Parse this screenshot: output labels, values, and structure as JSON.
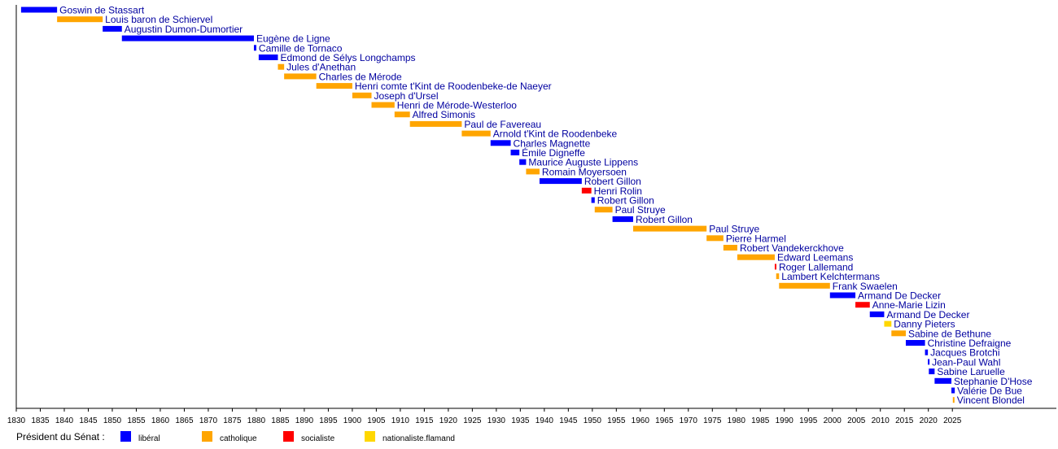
{
  "chart_data": {
    "type": "timeline",
    "xlim": [
      1830,
      2027
    ],
    "x_ticks": [
      1830,
      1835,
      1840,
      1845,
      1850,
      1855,
      1860,
      1865,
      1870,
      1875,
      1880,
      1885,
      1890,
      1895,
      1900,
      1905,
      1910,
      1915,
      1920,
      1925,
      1930,
      1935,
      1940,
      1945,
      1950,
      1955,
      1960,
      1965,
      1970,
      1975,
      1980,
      1985,
      1990,
      1995,
      2000,
      2005,
      2010,
      2015,
      2020,
      2025
    ],
    "colors": {
      "liberal": "#0000ff",
      "catholique": "#ffa500",
      "socialiste": "#ff0000",
      "nationaliste": "#ffd700"
    },
    "legend": {
      "title": "Président du Sénat :",
      "entries": [
        {
          "key": "liberal",
          "label": "libéral"
        },
        {
          "key": "catholique",
          "label": "catholique"
        },
        {
          "key": "socialiste",
          "label": "socialiste"
        },
        {
          "key": "nationaliste",
          "label": "nationaliste.flamand"
        }
      ]
    },
    "presidents": [
      {
        "name": "Goswin de Stassart",
        "start": 1831,
        "end": 1838.5,
        "party": "liberal"
      },
      {
        "name": "Louis baron de Schiervel",
        "start": 1838.5,
        "end": 1848,
        "party": "catholique"
      },
      {
        "name": "Augustin Dumon-Dumortier",
        "start": 1848,
        "end": 1852,
        "party": "liberal"
      },
      {
        "name": "Eugène de Ligne",
        "start": 1852,
        "end": 1879.5,
        "party": "liberal"
      },
      {
        "name": "Camille de Tornaco",
        "start": 1879.5,
        "end": 1880,
        "party": "liberal"
      },
      {
        "name": "Edmond de Sélys Longchamps",
        "start": 1880.5,
        "end": 1884.5,
        "party": "liberal"
      },
      {
        "name": "Jules d'Anethan",
        "start": 1884.5,
        "end": 1885.8,
        "party": "catholique"
      },
      {
        "name": "Charles de Mérode",
        "start": 1885.8,
        "end": 1892.5,
        "party": "catholique"
      },
      {
        "name": "Henri comte t'Kint de Roodenbeke-de Naeyer",
        "start": 1892.5,
        "end": 1900,
        "party": "catholique"
      },
      {
        "name": "Joseph d'Ursel",
        "start": 1900,
        "end": 1904,
        "party": "catholique"
      },
      {
        "name": "Henri de Mérode-Westerloo",
        "start": 1904,
        "end": 1908.8,
        "party": "catholique"
      },
      {
        "name": "Alfred Simonis",
        "start": 1908.8,
        "end": 1912,
        "party": "catholique"
      },
      {
        "name": "Paul de Favereau",
        "start": 1912,
        "end": 1922.8,
        "party": "catholique"
      },
      {
        "name": "Arnold t'Kint de Roodenbeke",
        "start": 1922.8,
        "end": 1928.8,
        "party": "catholique"
      },
      {
        "name": "Charles Magnette",
        "start": 1928.8,
        "end": 1933,
        "party": "liberal"
      },
      {
        "name": "Émile Digneffe",
        "start": 1933,
        "end": 1934.8,
        "party": "liberal"
      },
      {
        "name": "Maurice Auguste Lippens",
        "start": 1934.8,
        "end": 1936.2,
        "party": "liberal"
      },
      {
        "name": "Romain Moyersoen",
        "start": 1936.2,
        "end": 1939,
        "party": "catholique"
      },
      {
        "name": "Robert Gillon",
        "start": 1939,
        "end": 1947.8,
        "party": "liberal"
      },
      {
        "name": "Henri Rolin",
        "start": 1947.8,
        "end": 1949.8,
        "party": "socialiste"
      },
      {
        "name": "Robert Gillon",
        "start": 1949.8,
        "end": 1950.5,
        "party": "liberal"
      },
      {
        "name": "Paul Struye",
        "start": 1950.5,
        "end": 1954.2,
        "party": "catholique"
      },
      {
        "name": "Robert Gillon",
        "start": 1954.2,
        "end": 1958.5,
        "party": "liberal"
      },
      {
        "name": "Paul Struye",
        "start": 1958.5,
        "end": 1973.8,
        "party": "catholique"
      },
      {
        "name": "Pierre Harmel",
        "start": 1973.8,
        "end": 1977.3,
        "party": "catholique"
      },
      {
        "name": "Robert Vandekerckhove",
        "start": 1977.3,
        "end": 1980.2,
        "party": "catholique"
      },
      {
        "name": "Edward Leemans",
        "start": 1980.2,
        "end": 1988,
        "party": "catholique"
      },
      {
        "name": "Roger Lallemand",
        "start": 1988,
        "end": 1988.3,
        "party": "socialiste"
      },
      {
        "name": "Lambert Kelchtermans",
        "start": 1988.3,
        "end": 1988.9,
        "party": "catholique"
      },
      {
        "name": "Frank Swaelen",
        "start": 1988.9,
        "end": 1999.5,
        "party": "catholique"
      },
      {
        "name": "Armand De Decker",
        "start": 1999.5,
        "end": 2004.8,
        "party": "liberal"
      },
      {
        "name": "Anne-Marie Lizin",
        "start": 2004.8,
        "end": 2007.8,
        "party": "socialiste"
      },
      {
        "name": "Armand De Decker",
        "start": 2007.8,
        "end": 2010.8,
        "party": "liberal"
      },
      {
        "name": "Danny Pieters",
        "start": 2010.8,
        "end": 2012.3,
        "party": "nationaliste"
      },
      {
        "name": "Sabine de Bethune",
        "start": 2012.3,
        "end": 2015.3,
        "party": "catholique"
      },
      {
        "name": "Christine Defraigne",
        "start": 2015.3,
        "end": 2019.3,
        "party": "liberal"
      },
      {
        "name": "Jacques Brotchi",
        "start": 2019.3,
        "end": 2019.9,
        "party": "liberal"
      },
      {
        "name": "Jean-Paul Wahl",
        "start": 2019.9,
        "end": 2020.1,
        "party": "liberal"
      },
      {
        "name": "Sabine Laruelle",
        "start": 2020.1,
        "end": 2021.3,
        "party": "liberal"
      },
      {
        "name": "Stephanie D'Hose",
        "start": 2021.3,
        "end": 2024.8,
        "party": "liberal"
      },
      {
        "name": "Valérie De Bue",
        "start": 2024.8,
        "end": 2025.5,
        "party": "liberal"
      },
      {
        "name": "Vincent Blondel",
        "start": 2025.1,
        "end": 2025.4,
        "party": "catholique"
      }
    ]
  }
}
